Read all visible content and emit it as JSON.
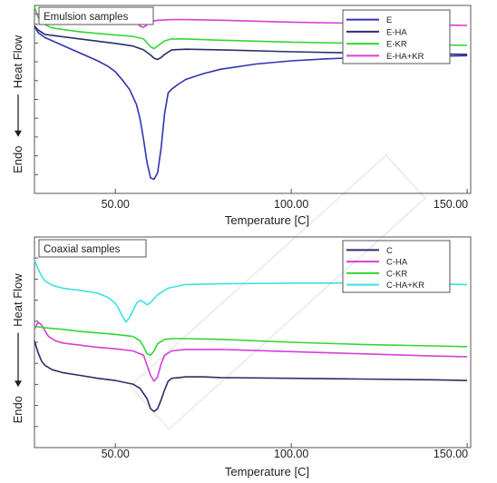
{
  "chart_data": [
    {
      "type": "line",
      "title": "Emulsion samples",
      "xlabel": "Temperature [C]",
      "ylabel_top": "Heat Flow",
      "ylabel_bottom": "Endo",
      "xlim": [
        27,
        151
      ],
      "ylim": [
        -13,
        1.6
      ],
      "y_ticks_shown": false,
      "grid": false,
      "legend_position": "top-right",
      "xticks": [
        "50.00",
        "100.00",
        "150.00"
      ],
      "series": [
        {
          "name": "E",
          "color": "#3232b4",
          "x": [
            27,
            28,
            30,
            35,
            40,
            45,
            48,
            50,
            52,
            54,
            56,
            57,
            58,
            59,
            60,
            61,
            62,
            63,
            64,
            65,
            66,
            68,
            70,
            75,
            80,
            90,
            100,
            110,
            120,
            130,
            140,
            150
          ],
          "values": [
            0,
            -0.5,
            -0.9,
            -1.5,
            -2.1,
            -2.7,
            -3.15,
            -3.55,
            -4.2,
            -4.9,
            -6.1,
            -7.2,
            -8.8,
            -10.6,
            -11.8,
            -11.9,
            -11.4,
            -9.5,
            -6.8,
            -5.2,
            -4.9,
            -4.5,
            -4.15,
            -3.7,
            -3.35,
            -2.95,
            -2.7,
            -2.55,
            -2.45,
            -2.4,
            -2.35,
            -2.3
          ]
        },
        {
          "name": "E-HA",
          "color": "#2e2c6a",
          "x": [
            27,
            28,
            30,
            40,
            50,
            55,
            58,
            60,
            61,
            62,
            63,
            64,
            66,
            70,
            80,
            100,
            120,
            140,
            150
          ],
          "values": [
            0,
            -0.3,
            -0.65,
            -1.0,
            -1.35,
            -1.55,
            -1.85,
            -2.25,
            -2.5,
            -2.6,
            -2.45,
            -2.2,
            -1.85,
            -1.8,
            -1.85,
            -2.0,
            -2.1,
            -2.15,
            -2.2
          ]
        },
        {
          "name": "E-KR",
          "color": "#33d633",
          "x": [
            27,
            28,
            29,
            32,
            40,
            50,
            55,
            58,
            59,
            60,
            61,
            62,
            64,
            66,
            70,
            80,
            100,
            120,
            140,
            150
          ],
          "values": [
            1.5,
            0.7,
            0.25,
            -0.15,
            -0.45,
            -0.7,
            -0.8,
            -1.0,
            -1.3,
            -1.6,
            -1.75,
            -1.55,
            -1.15,
            -1.0,
            -1.0,
            -1.1,
            -1.25,
            -1.35,
            -1.45,
            -1.5
          ]
        },
        {
          "name": "E-HA+KR",
          "color": "#d63fd6",
          "x": [
            27,
            30,
            40,
            50,
            54,
            56,
            57,
            58,
            59,
            60,
            62,
            66,
            70,
            80,
            100,
            120,
            140,
            150
          ],
          "values": [
            0.95,
            0.85,
            0.8,
            0.65,
            0.5,
            0.3,
            0.0,
            -0.1,
            0.1,
            0.35,
            0.45,
            0.5,
            0.5,
            0.45,
            0.3,
            0.2,
            0.1,
            0.05
          ]
        }
      ]
    },
    {
      "type": "line",
      "title": "Coaxial samples",
      "xlabel": "Temperature [C]",
      "ylabel_top": "Heat Flow",
      "ylabel_bottom": "Endo",
      "xlim": [
        27,
        151
      ],
      "ylim": [
        -13,
        1.6
      ],
      "y_ticks_shown": false,
      "grid": false,
      "legend_position": "top-right",
      "xticks": [
        "50.00",
        "100.00",
        "150.00"
      ],
      "series": [
        {
          "name": "C",
          "color": "#2e2c6a",
          "x": [
            27,
            28,
            29,
            30,
            32,
            35,
            40,
            45,
            50,
            55,
            57,
            59,
            60,
            61,
            62,
            63,
            64,
            65,
            66,
            68,
            70,
            75,
            80,
            100,
            120,
            140,
            150
          ],
          "values": [
            -5.6,
            -6.4,
            -7.0,
            -7.3,
            -7.6,
            -7.8,
            -8.0,
            -8.2,
            -8.35,
            -8.6,
            -8.9,
            -9.6,
            -10.3,
            -10.5,
            -10.3,
            -9.7,
            -9.0,
            -8.4,
            -8.2,
            -8.15,
            -8.1,
            -8.1,
            -8.15,
            -8.2,
            -8.25,
            -8.3,
            -8.35
          ]
        },
        {
          "name": "C-HA",
          "color": "#d63fd6",
          "x": [
            27,
            28,
            29,
            30,
            31,
            33,
            35,
            40,
            45,
            50,
            55,
            58,
            59,
            60,
            61,
            62,
            63,
            64,
            66,
            70,
            80,
            100,
            120,
            140,
            150
          ],
          "values": [
            -4.8,
            -4.3,
            -4.5,
            -4.9,
            -5.3,
            -5.6,
            -5.75,
            -5.9,
            -6.05,
            -6.15,
            -6.3,
            -6.6,
            -7.3,
            -8.0,
            -8.4,
            -8.1,
            -7.2,
            -6.6,
            -6.3,
            -6.2,
            -6.2,
            -6.35,
            -6.5,
            -6.65,
            -6.7
          ]
        },
        {
          "name": "C-KR",
          "color": "#33d633",
          "x": [
            27,
            30,
            35,
            40,
            45,
            50,
            55,
            57,
            58,
            59,
            60,
            61,
            62,
            64,
            66,
            70,
            80,
            100,
            120,
            140,
            150
          ],
          "values": [
            -4.6,
            -4.7,
            -4.8,
            -4.95,
            -5.05,
            -5.15,
            -5.3,
            -5.6,
            -6.0,
            -6.5,
            -6.6,
            -6.3,
            -5.8,
            -5.5,
            -5.45,
            -5.45,
            -5.5,
            -5.7,
            -5.85,
            -5.95,
            -6.0
          ]
        },
        {
          "name": "C-HA+KR",
          "color": "#3ee0e0",
          "x": [
            27,
            28,
            29,
            30,
            32,
            35,
            40,
            45,
            48,
            50,
            51,
            52,
            53,
            54,
            55,
            56,
            57,
            58,
            59,
            60,
            62,
            65,
            70,
            80,
            100,
            120,
            140,
            150
          ],
          "values": [
            0.0,
            -0.6,
            -1.1,
            -1.45,
            -1.75,
            -1.95,
            -2.1,
            -2.3,
            -2.6,
            -3.0,
            -3.4,
            -3.9,
            -4.3,
            -4.0,
            -3.5,
            -3.0,
            -2.8,
            -2.9,
            -3.1,
            -2.95,
            -2.4,
            -1.95,
            -1.7,
            -1.65,
            -1.6,
            -1.6,
            -1.65,
            -1.7
          ]
        }
      ]
    }
  ]
}
